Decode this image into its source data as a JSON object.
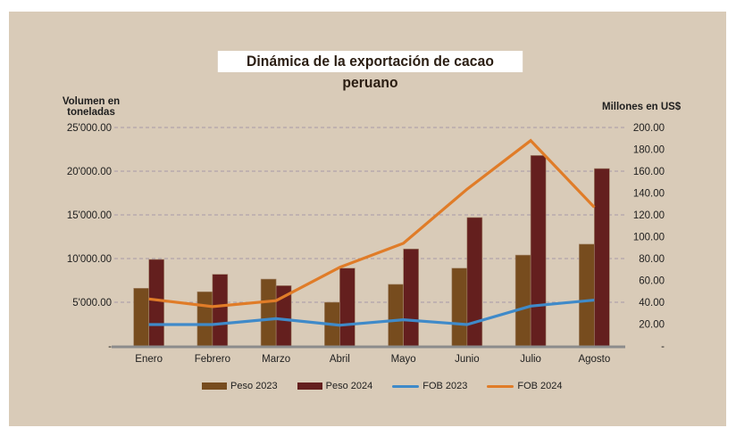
{
  "chart_data": {
    "type": "bar",
    "title": "Dinámica de la exportación de cacao peruano",
    "ylabel": "Volumen en toneladas",
    "y2label": "Millones en US$",
    "xlabel": "",
    "categories": [
      "Enero",
      "Febrero",
      "Marzo",
      "Abril",
      "Mayo",
      "Junio",
      "Julio",
      "Agosto"
    ],
    "ylim": [
      0,
      25000
    ],
    "y2lim": [
      0,
      200
    ],
    "yticks": [
      "-",
      "5'000.00",
      "10'000.00",
      "15'000.00",
      "20'000.00",
      "25'000.00"
    ],
    "y2ticks": [
      "-",
      "20.00",
      "40.00",
      "60.00",
      "80.00",
      "100.00",
      "120.00",
      "140.00",
      "160.00",
      "180.00",
      "200.00"
    ],
    "grid": true,
    "legend_position": "bottom",
    "series": [
      {
        "name": "Peso 2023",
        "kind": "bar",
        "axis": "left",
        "color": "#774c1e",
        "values": [
          6600,
          6200,
          7650,
          5000,
          7050,
          8900,
          10400,
          11650
        ]
      },
      {
        "name": "Peso 2024",
        "kind": "bar",
        "axis": "left",
        "color": "#641f1e",
        "values": [
          9900,
          8200,
          6900,
          8900,
          11100,
          14700,
          21800,
          20300
        ]
      },
      {
        "name": "FOB 2023",
        "kind": "line",
        "axis": "right",
        "color": "#3f8ac9",
        "values": [
          19.6,
          19.6,
          25,
          19,
          24,
          19.6,
          36.5,
          42
        ]
      },
      {
        "name": "FOB 2024",
        "kind": "line",
        "axis": "right",
        "color": "#e07c28",
        "values": [
          43,
          36,
          41.5,
          72,
          94,
          143.5,
          188,
          127
        ]
      }
    ]
  }
}
